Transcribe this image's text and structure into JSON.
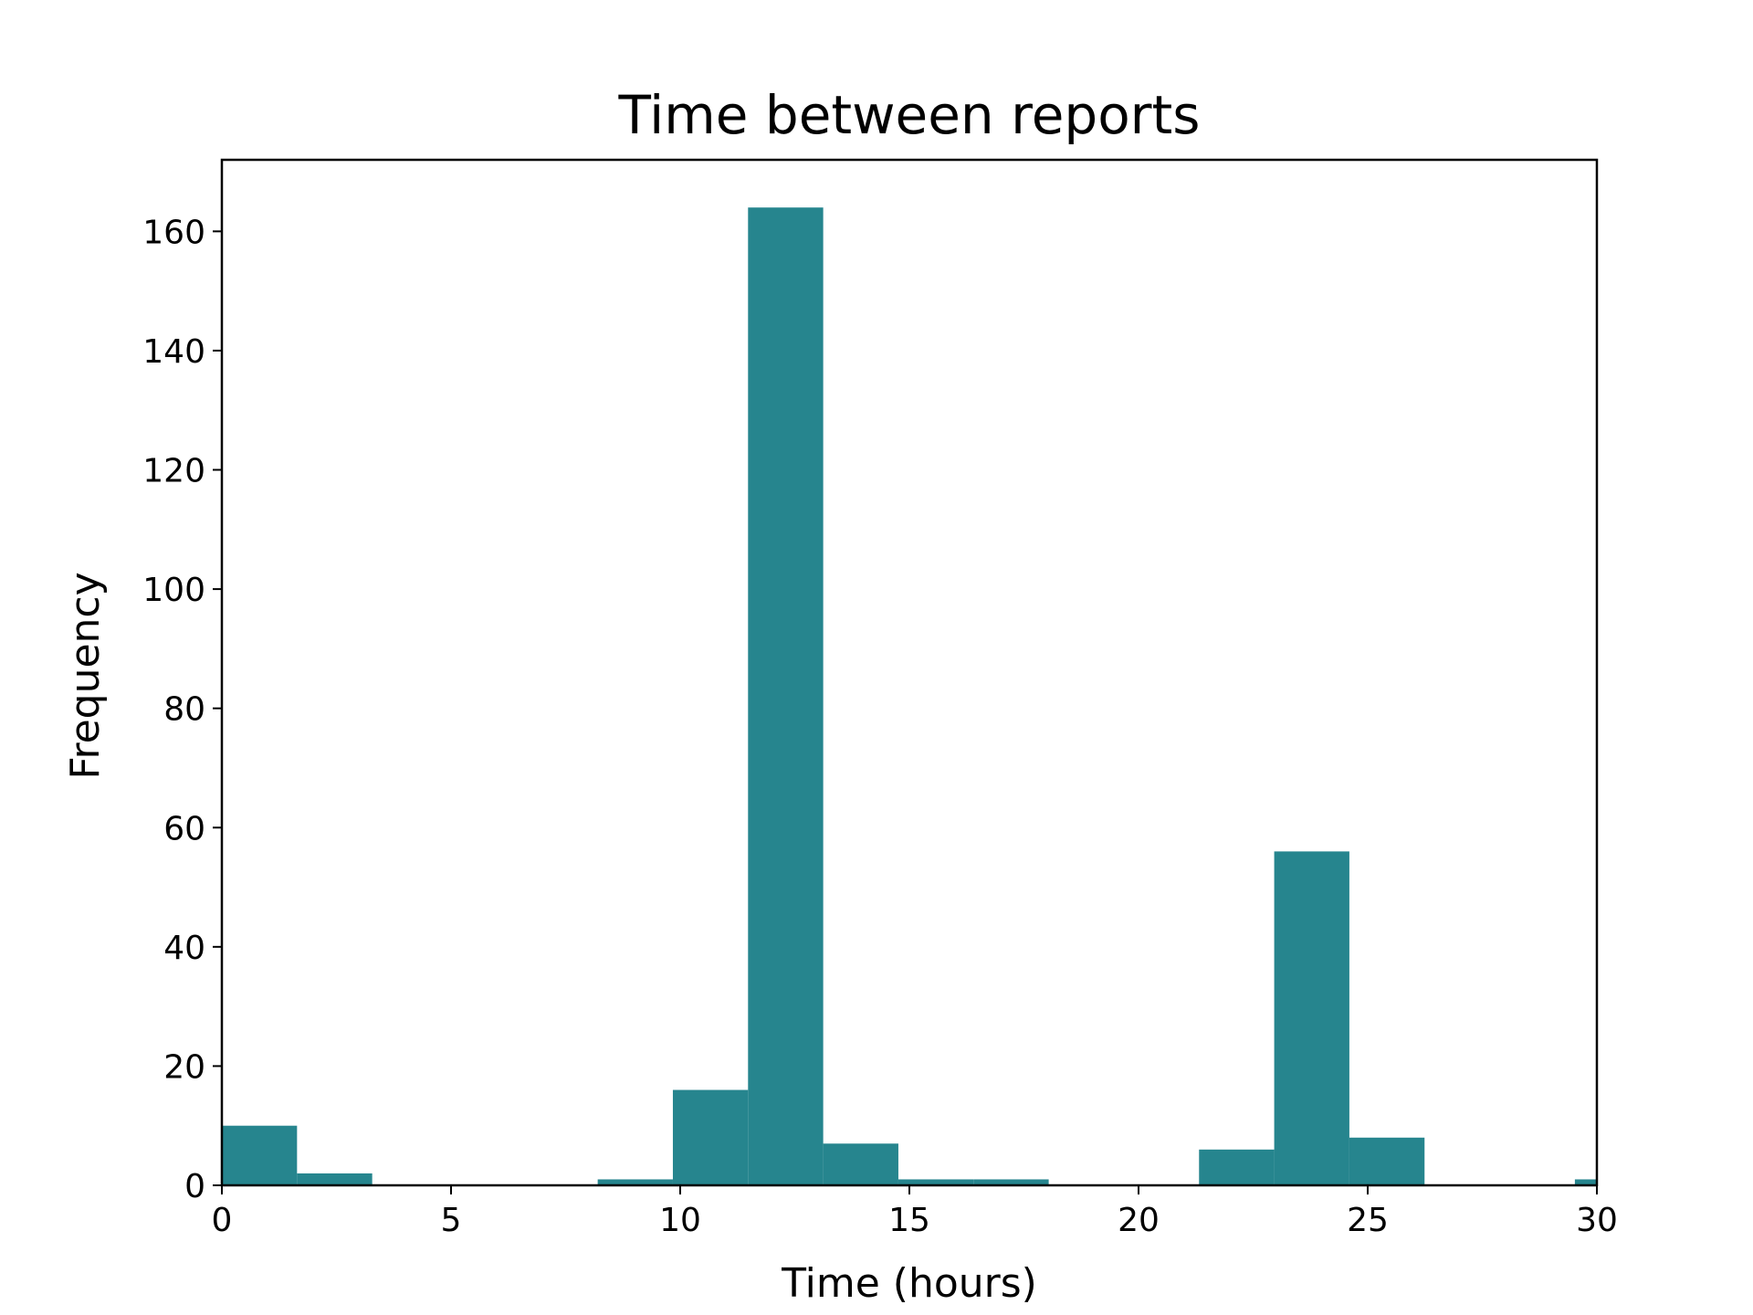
{
  "chart_data": {
    "type": "bar",
    "title": "Time between reports",
    "xlabel": "Time (hours)",
    "ylabel": "Frequency",
    "xlim": [
      0,
      30
    ],
    "ylim": [
      0,
      172
    ],
    "x_ticks": [
      0,
      5,
      10,
      15,
      20,
      25,
      30
    ],
    "y_ticks": [
      0,
      20,
      40,
      60,
      80,
      100,
      120,
      140,
      160
    ],
    "grid": false,
    "bar_color": "#26858e",
    "bins": [
      {
        "start": 0.0,
        "end": 1.64,
        "count": 10
      },
      {
        "start": 1.64,
        "end": 3.28,
        "count": 2
      },
      {
        "start": 3.28,
        "end": 4.92,
        "count": 0
      },
      {
        "start": 4.92,
        "end": 6.56,
        "count": 0
      },
      {
        "start": 6.56,
        "end": 8.2,
        "count": 0
      },
      {
        "start": 8.2,
        "end": 9.84,
        "count": 1
      },
      {
        "start": 9.84,
        "end": 11.48,
        "count": 16
      },
      {
        "start": 11.48,
        "end": 13.12,
        "count": 164
      },
      {
        "start": 13.12,
        "end": 14.76,
        "count": 7
      },
      {
        "start": 14.76,
        "end": 16.4,
        "count": 1
      },
      {
        "start": 16.4,
        "end": 18.04,
        "count": 1
      },
      {
        "start": 18.04,
        "end": 19.68,
        "count": 0
      },
      {
        "start": 19.68,
        "end": 21.32,
        "count": 0
      },
      {
        "start": 21.32,
        "end": 22.96,
        "count": 6
      },
      {
        "start": 22.96,
        "end": 24.6,
        "count": 56
      },
      {
        "start": 24.6,
        "end": 26.24,
        "count": 8
      },
      {
        "start": 26.24,
        "end": 27.88,
        "count": 0
      },
      {
        "start": 27.88,
        "end": 29.52,
        "count": 0
      },
      {
        "start": 29.52,
        "end": 31.16,
        "count": 1
      }
    ]
  }
}
